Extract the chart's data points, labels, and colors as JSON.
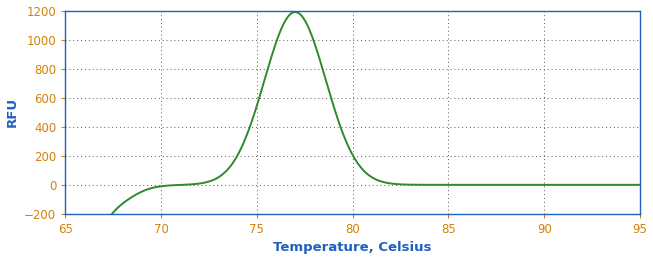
{
  "title": "",
  "xlabel": "Temperature, Celsius",
  "ylabel": "RFU",
  "xlim": [
    65,
    95
  ],
  "ylim": [
    -200,
    1200
  ],
  "xticks": [
    65,
    70,
    75,
    80,
    85,
    90,
    95
  ],
  "yticks": [
    -200,
    0,
    200,
    400,
    600,
    800,
    1000,
    1200
  ],
  "line_color": "#2d8a2d",
  "line_width": 1.4,
  "background_color": "#ffffff",
  "plot_bg_color": "#ffffff",
  "grid_color": "#5a5a5a",
  "tick_color": "#d4820a",
  "label_color": "#2060c0",
  "xlabel_color": "#2060c0",
  "ylabel_color": "#2060c0",
  "spine_color": "#2060c0"
}
